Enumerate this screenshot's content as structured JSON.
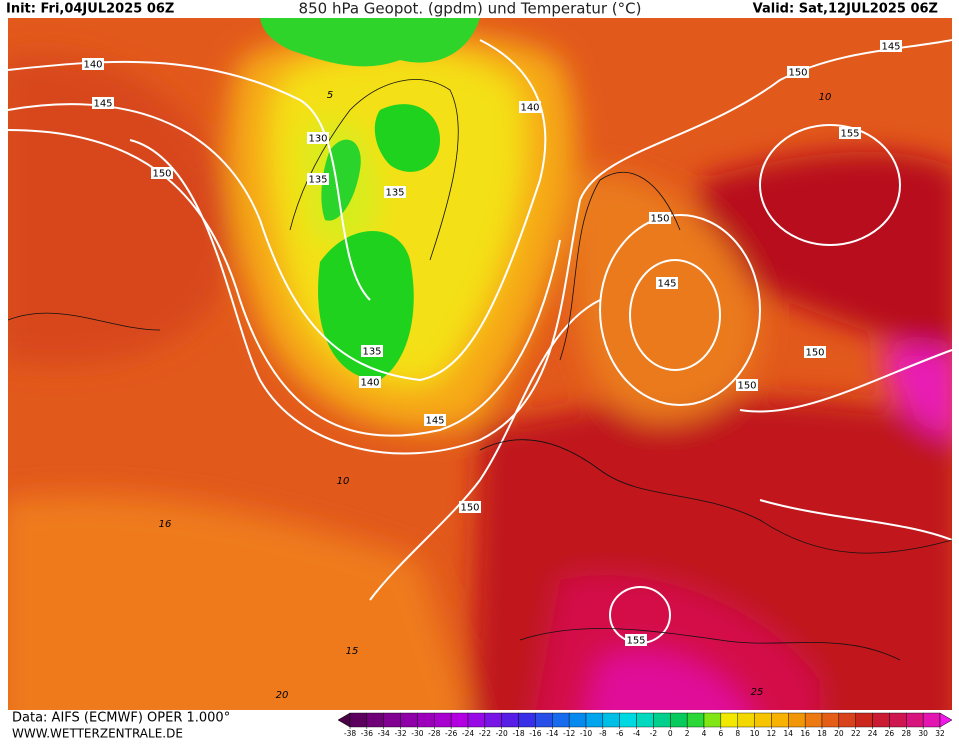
{
  "header": {
    "init": "Init: Fri,04JUL2025 06Z",
    "title": "850 hPa Geopot. (gpdm) und Temperatur (°C)",
    "valid": "Valid: Sat,12JUL2025 06Z"
  },
  "footer": {
    "data_source": "Data: AIFS (ECMWF) OPER 1.000°",
    "website": "WWW.WETTERZENTRALE.DE"
  },
  "geopotential_labels": [
    "140",
    "145",
    "150",
    "130",
    "135",
    "135",
    "140",
    "135",
    "140",
    "145",
    "150",
    "150",
    "145",
    "150",
    "150",
    "155",
    "150",
    "145",
    "155"
  ],
  "temperature_labels": [
    "5",
    "10",
    "10",
    "16",
    "15",
    "20",
    "25"
  ],
  "legend": {
    "ticks": [
      -38,
      -36,
      -34,
      -32,
      -30,
      -28,
      -26,
      -24,
      -22,
      -20,
      -18,
      -16,
      -14,
      -12,
      -10,
      -8,
      -6,
      -4,
      -2,
      0,
      2,
      4,
      6,
      8,
      10,
      12,
      14,
      16,
      18,
      20,
      22,
      24,
      26,
      28,
      30,
      32
    ]
  }
}
